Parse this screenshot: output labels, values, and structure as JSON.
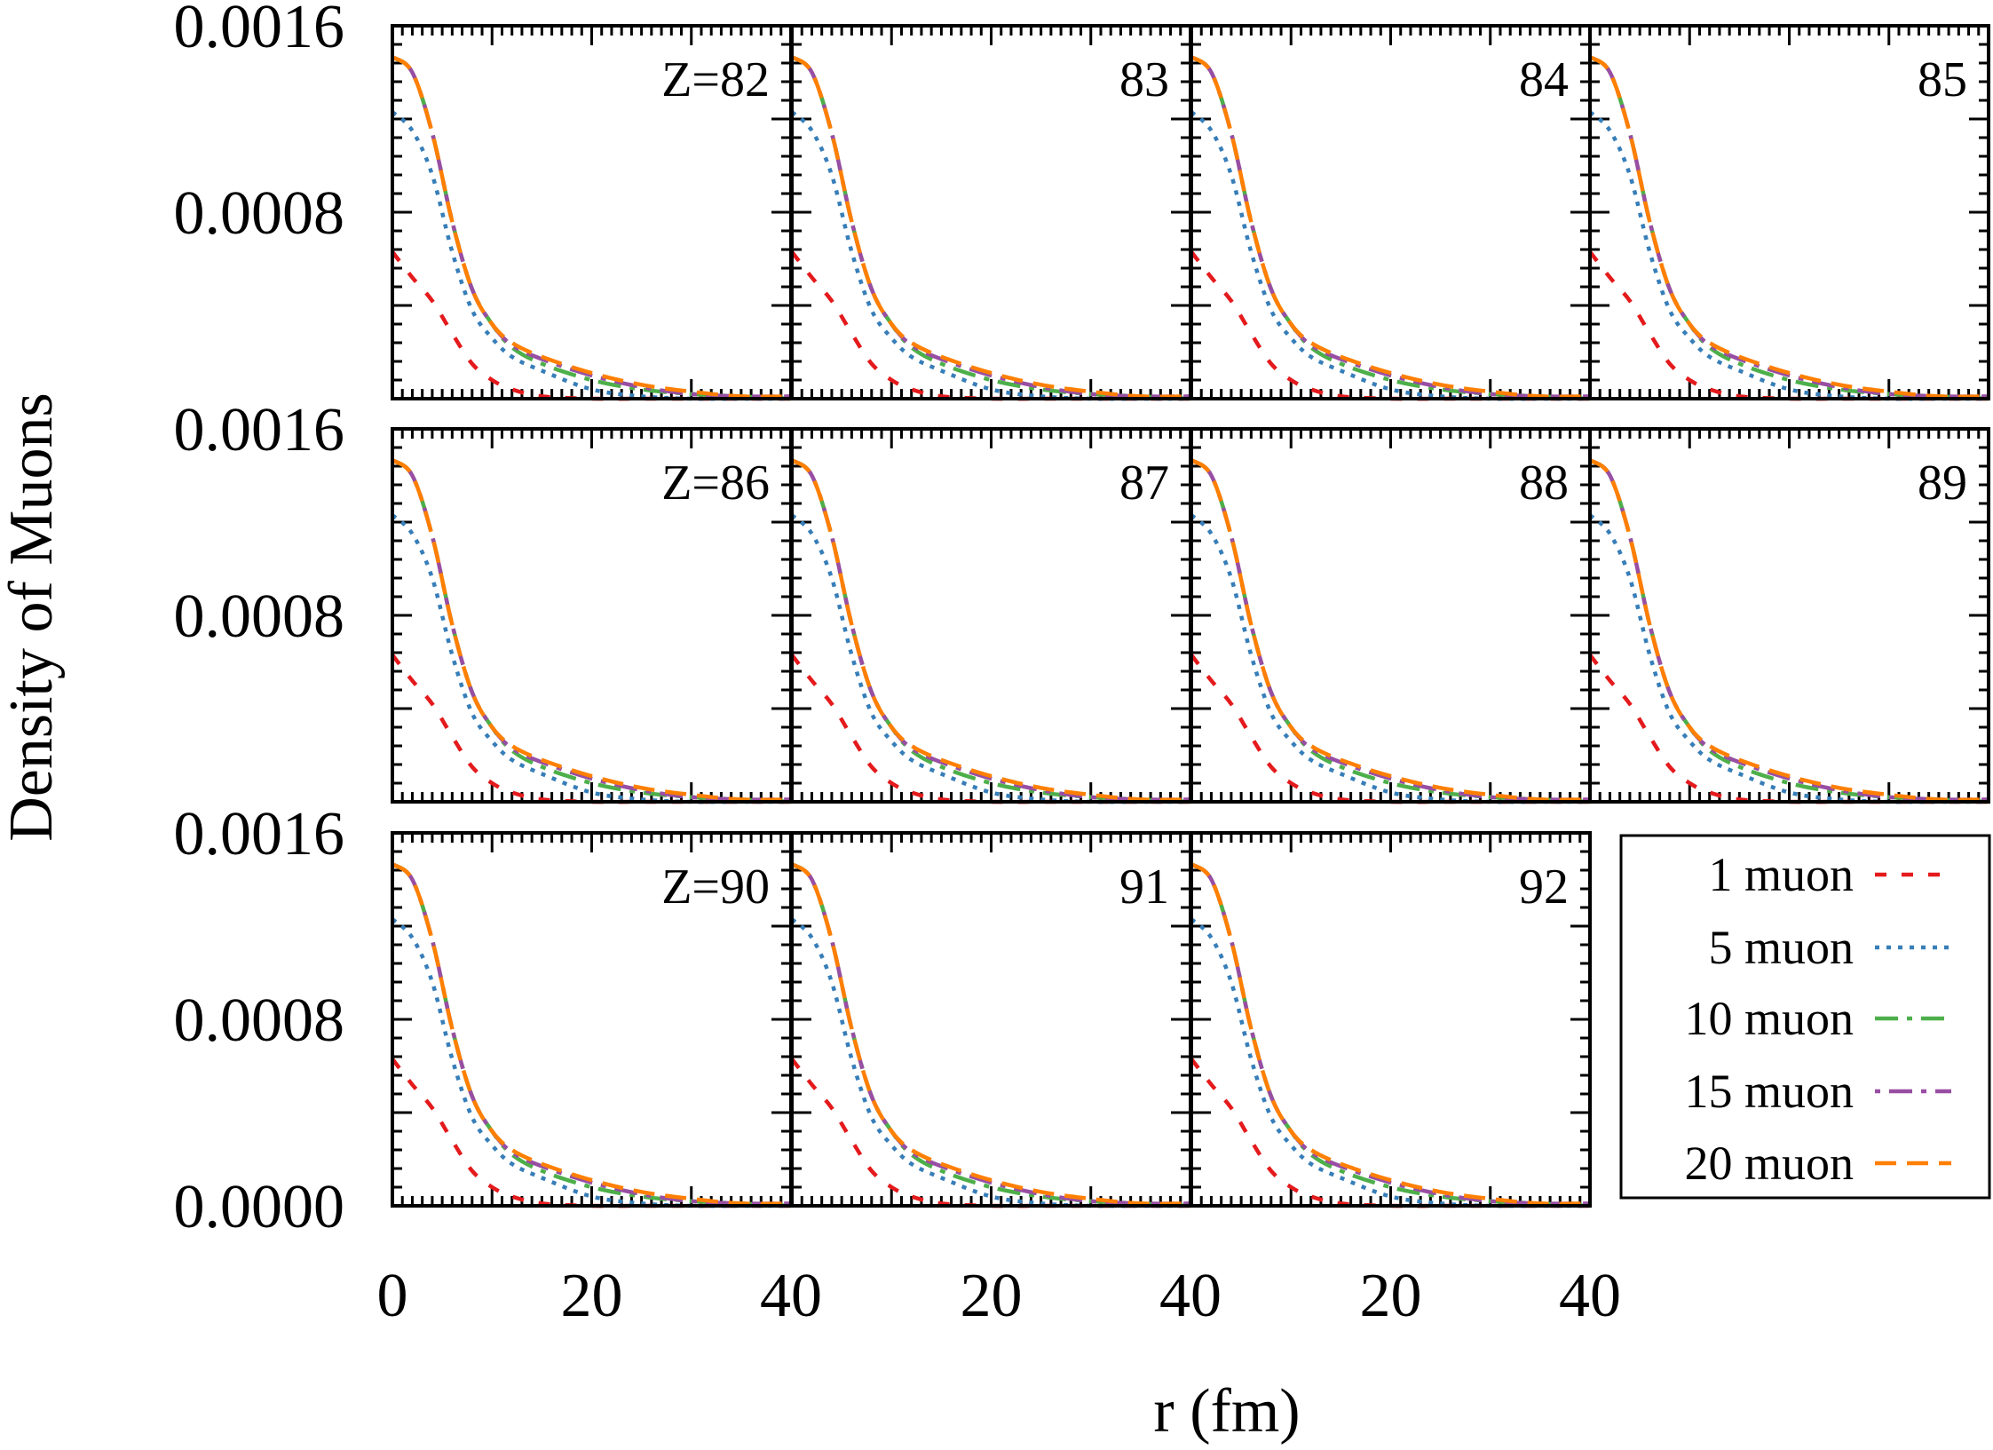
{
  "chart_data": {
    "type": "line",
    "layout": "small-multiples 3x4",
    "xlabel": "r (fm)",
    "ylabel": "Density of Muons",
    "xlim": [
      0,
      40
    ],
    "ylim": [
      0,
      0.0016
    ],
    "x_tick_labels": [
      "0",
      "20",
      "40"
    ],
    "y_tick_labels": [
      "0.0000",
      "0.0008",
      "0.0016"
    ],
    "panels": [
      "Z=82",
      "83",
      "84",
      "85",
      "Z=86",
      "87",
      "88",
      "89",
      "Z=90",
      "91",
      "92"
    ],
    "x": [
      0,
      2,
      4,
      6,
      8,
      10,
      12,
      15,
      20,
      25,
      30,
      35,
      40
    ],
    "series": [
      {
        "name": "1 muon",
        "color": "#e41a1c",
        "style": "dashed",
        "values": [
          0.00063,
          0.00052,
          0.00042,
          0.00028,
          0.00015,
          8e-05,
          4e-05,
          1e-05,
          0.0,
          0.0,
          0.0,
          0.0,
          0.0
        ]
      },
      {
        "name": "5 muon",
        "color": "#377eb8",
        "style": "dotted",
        "values": [
          0.00123,
          0.00115,
          0.00096,
          0.00063,
          0.00038,
          0.00026,
          0.00018,
          0.00012,
          4e-05,
          1e-05,
          0.0,
          0.0,
          0.0
        ]
      },
      {
        "name": "10 muon",
        "color": "#4daf4a",
        "style": "dash-dot",
        "values": [
          0.001466,
          0.0014,
          0.00114,
          0.00076,
          0.00047,
          0.00032,
          0.00022,
          0.00015,
          8e-05,
          4e-05,
          2e-05,
          1e-05,
          0.0
        ]
      },
      {
        "name": "15 muon",
        "color": "#984ea3",
        "style": "dash-dot-dot",
        "values": [
          0.001466,
          0.0014,
          0.00114,
          0.00076,
          0.00047,
          0.00032,
          0.00023,
          0.00017,
          0.0001,
          5e-05,
          2e-05,
          1e-05,
          1e-05
        ]
      },
      {
        "name": "20 muon",
        "color": "#ff7f00",
        "style": "long-dashed",
        "values": [
          0.001466,
          0.0014,
          0.00114,
          0.00076,
          0.00047,
          0.00032,
          0.00024,
          0.00018,
          0.00011,
          6e-05,
          3e-05,
          1e-05,
          1e-05
        ]
      }
    ],
    "legend": {
      "placement": "bottom-right",
      "entries": [
        "1 muon",
        "5 muon",
        "10 muon",
        "15 muon",
        "20 muon"
      ]
    },
    "grid": false
  }
}
